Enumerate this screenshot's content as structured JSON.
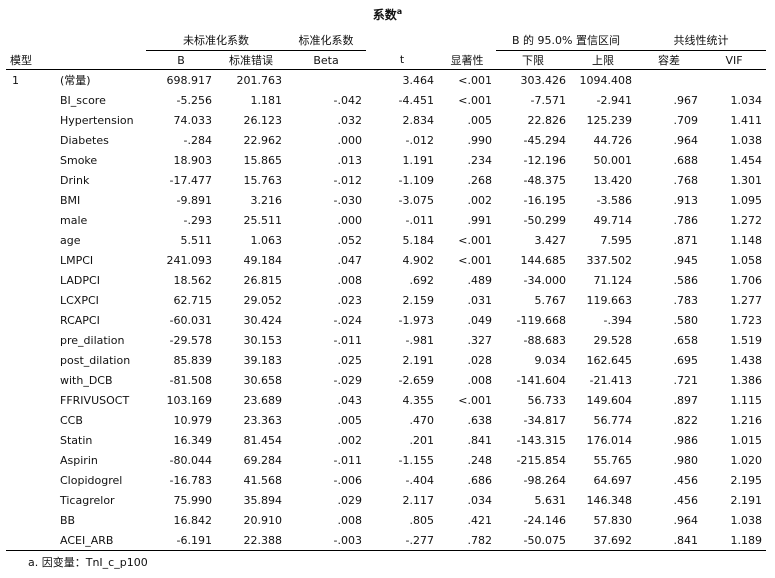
{
  "title": "系数",
  "title_sup": "a",
  "headers": {
    "model": "模型",
    "unstd_group": "未标准化系数",
    "std_group": "标准化系数",
    "ci_group": "B 的 95.0% 置信区间",
    "collin_group": "共线性统计",
    "B": "B",
    "se": "标准错误",
    "beta": "Beta",
    "t": "t",
    "sig": "显著性",
    "lower": "下限",
    "upper": "上限",
    "tol": "容差",
    "vif": "VIF"
  },
  "rows": [
    {
      "model": "1",
      "var": "(常量)",
      "B": "698.917",
      "se": "201.763",
      "beta": "",
      "t": "3.464",
      "sig": "<.001",
      "lower": "303.426",
      "upper": "1094.408",
      "tol": "",
      "vif": ""
    },
    {
      "model": "",
      "var": "BI_score",
      "B": "-5.256",
      "se": "1.181",
      "beta": "-.042",
      "t": "-4.451",
      "sig": "<.001",
      "lower": "-7.571",
      "upper": "-2.941",
      "tol": ".967",
      "vif": "1.034"
    },
    {
      "model": "",
      "var": "Hypertension",
      "B": "74.033",
      "se": "26.123",
      "beta": ".032",
      "t": "2.834",
      "sig": ".005",
      "lower": "22.826",
      "upper": "125.239",
      "tol": ".709",
      "vif": "1.411"
    },
    {
      "model": "",
      "var": "Diabetes",
      "B": "-.284",
      "se": "22.962",
      "beta": ".000",
      "t": "-.012",
      "sig": ".990",
      "lower": "-45.294",
      "upper": "44.726",
      "tol": ".964",
      "vif": "1.038"
    },
    {
      "model": "",
      "var": "Smoke",
      "B": "18.903",
      "se": "15.865",
      "beta": ".013",
      "t": "1.191",
      "sig": ".234",
      "lower": "-12.196",
      "upper": "50.001",
      "tol": ".688",
      "vif": "1.454"
    },
    {
      "model": "",
      "var": "Drink",
      "B": "-17.477",
      "se": "15.763",
      "beta": "-.012",
      "t": "-1.109",
      "sig": ".268",
      "lower": "-48.375",
      "upper": "13.420",
      "tol": ".768",
      "vif": "1.301"
    },
    {
      "model": "",
      "var": "BMI",
      "B": "-9.891",
      "se": "3.216",
      "beta": "-.030",
      "t": "-3.075",
      "sig": ".002",
      "lower": "-16.195",
      "upper": "-3.586",
      "tol": ".913",
      "vif": "1.095"
    },
    {
      "model": "",
      "var": "male",
      "B": "-.293",
      "se": "25.511",
      "beta": ".000",
      "t": "-.011",
      "sig": ".991",
      "lower": "-50.299",
      "upper": "49.714",
      "tol": ".786",
      "vif": "1.272"
    },
    {
      "model": "",
      "var": "age",
      "B": "5.511",
      "se": "1.063",
      "beta": ".052",
      "t": "5.184",
      "sig": "<.001",
      "lower": "3.427",
      "upper": "7.595",
      "tol": ".871",
      "vif": "1.148"
    },
    {
      "model": "",
      "var": "LMPCI",
      "B": "241.093",
      "se": "49.184",
      "beta": ".047",
      "t": "4.902",
      "sig": "<.001",
      "lower": "144.685",
      "upper": "337.502",
      "tol": ".945",
      "vif": "1.058"
    },
    {
      "model": "",
      "var": "LADPCI",
      "B": "18.562",
      "se": "26.815",
      "beta": ".008",
      "t": ".692",
      "sig": ".489",
      "lower": "-34.000",
      "upper": "71.124",
      "tol": ".586",
      "vif": "1.706"
    },
    {
      "model": "",
      "var": "LCXPCI",
      "B": "62.715",
      "se": "29.052",
      "beta": ".023",
      "t": "2.159",
      "sig": ".031",
      "lower": "5.767",
      "upper": "119.663",
      "tol": ".783",
      "vif": "1.277"
    },
    {
      "model": "",
      "var": "RCAPCI",
      "B": "-60.031",
      "se": "30.424",
      "beta": "-.024",
      "t": "-1.973",
      "sig": ".049",
      "lower": "-119.668",
      "upper": "-.394",
      "tol": ".580",
      "vif": "1.723"
    },
    {
      "model": "",
      "var": "pre_dilation",
      "B": "-29.578",
      "se": "30.153",
      "beta": "-.011",
      "t": "-.981",
      "sig": ".327",
      "lower": "-88.683",
      "upper": "29.528",
      "tol": ".658",
      "vif": "1.519"
    },
    {
      "model": "",
      "var": "post_dilation",
      "B": "85.839",
      "se": "39.183",
      "beta": ".025",
      "t": "2.191",
      "sig": ".028",
      "lower": "9.034",
      "upper": "162.645",
      "tol": ".695",
      "vif": "1.438"
    },
    {
      "model": "",
      "var": "with_DCB",
      "B": "-81.508",
      "se": "30.658",
      "beta": "-.029",
      "t": "-2.659",
      "sig": ".008",
      "lower": "-141.604",
      "upper": "-21.413",
      "tol": ".721",
      "vif": "1.386"
    },
    {
      "model": "",
      "var": "FFRIVUSOCT",
      "B": "103.169",
      "se": "23.689",
      "beta": ".043",
      "t": "4.355",
      "sig": "<.001",
      "lower": "56.733",
      "upper": "149.604",
      "tol": ".897",
      "vif": "1.115"
    },
    {
      "model": "",
      "var": "CCB",
      "B": "10.979",
      "se": "23.363",
      "beta": ".005",
      "t": ".470",
      "sig": ".638",
      "lower": "-34.817",
      "upper": "56.774",
      "tol": ".822",
      "vif": "1.216"
    },
    {
      "model": "",
      "var": "Statin",
      "B": "16.349",
      "se": "81.454",
      "beta": ".002",
      "t": ".201",
      "sig": ".841",
      "lower": "-143.315",
      "upper": "176.014",
      "tol": ".986",
      "vif": "1.015"
    },
    {
      "model": "",
      "var": "Aspirin",
      "B": "-80.044",
      "se": "69.284",
      "beta": "-.011",
      "t": "-1.155",
      "sig": ".248",
      "lower": "-215.854",
      "upper": "55.765",
      "tol": ".980",
      "vif": "1.020"
    },
    {
      "model": "",
      "var": "Clopidogrel",
      "B": "-16.783",
      "se": "41.568",
      "beta": "-.006",
      "t": "-.404",
      "sig": ".686",
      "lower": "-98.264",
      "upper": "64.697",
      "tol": ".456",
      "vif": "2.195"
    },
    {
      "model": "",
      "var": "Ticagrelor",
      "B": "75.990",
      "se": "35.894",
      "beta": ".029",
      "t": "2.117",
      "sig": ".034",
      "lower": "5.631",
      "upper": "146.348",
      "tol": ".456",
      "vif": "2.191"
    },
    {
      "model": "",
      "var": "BB",
      "B": "16.842",
      "se": "20.910",
      "beta": ".008",
      "t": ".805",
      "sig": ".421",
      "lower": "-24.146",
      "upper": "57.830",
      "tol": ".964",
      "vif": "1.038"
    },
    {
      "model": "",
      "var": "ACEI_ARB",
      "B": "-6.191",
      "se": "22.388",
      "beta": "-.003",
      "t": "-.277",
      "sig": ".782",
      "lower": "-50.075",
      "upper": "37.692",
      "tol": ".841",
      "vif": "1.189"
    }
  ],
  "footnote": "a. 因变量：TnI_c_p100"
}
